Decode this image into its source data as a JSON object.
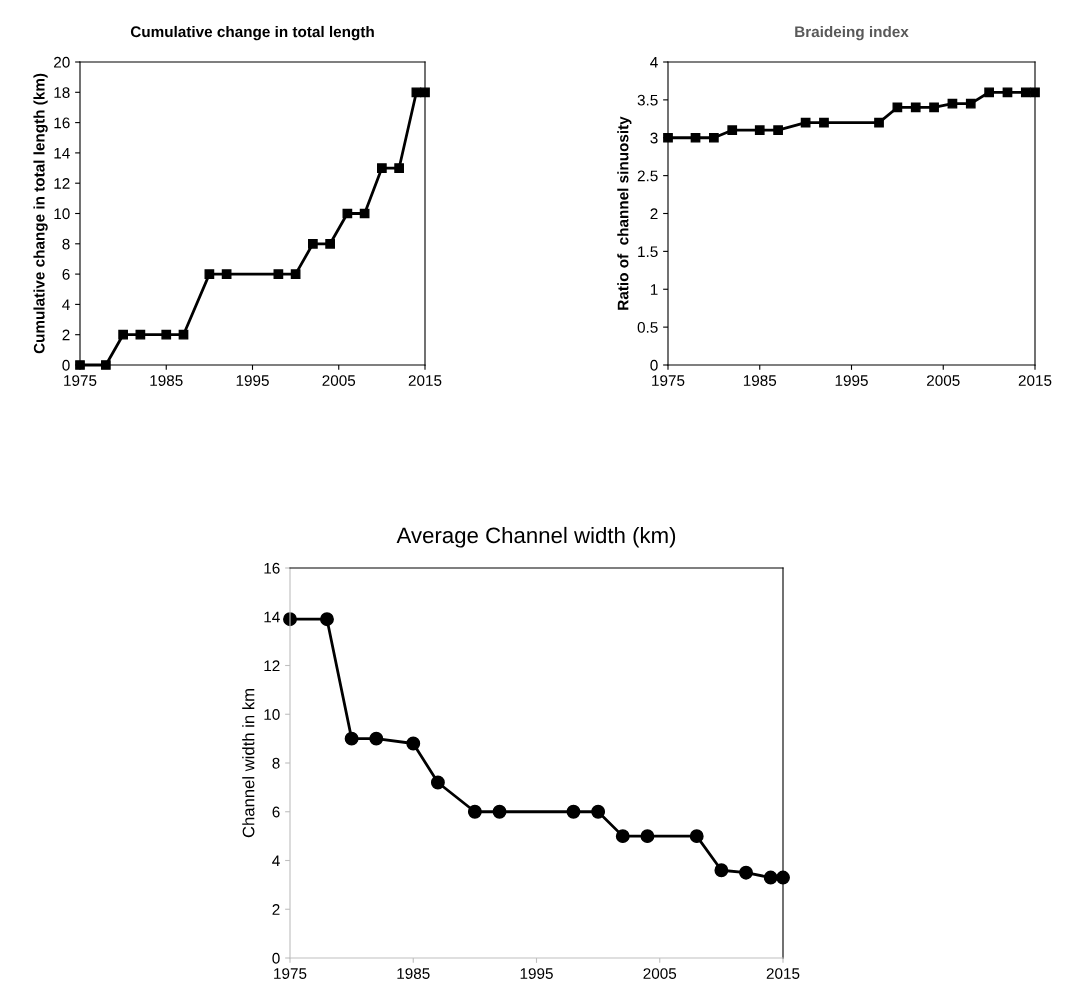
{
  "chart_data": [
    {
      "type": "line",
      "title": "Cumulative change in total length",
      "ylabel": "Cumulative change in total length (km)",
      "marker": "square",
      "grid": false,
      "legend": false,
      "x": [
        1975,
        1978,
        1980,
        1982,
        1985,
        1987,
        1990,
        1992,
        1998,
        2000,
        2002,
        2004,
        2006,
        2008,
        2010,
        2012,
        2014,
        2015
      ],
      "series": [
        {
          "color": "#000000",
          "values": [
            0,
            0,
            2,
            2,
            2,
            2,
            6,
            6,
            6,
            6,
            8,
            8,
            10,
            10,
            13,
            13,
            18,
            18
          ]
        }
      ],
      "xlim": [
        1975,
        2015
      ],
      "xticks": [
        1975,
        1985,
        1995,
        2005,
        2015
      ],
      "ylim": [
        0,
        20
      ],
      "yticks": [
        0,
        2,
        4,
        6,
        8,
        10,
        12,
        14,
        16,
        18,
        20
      ]
    },
    {
      "type": "line",
      "title": "Braideing index",
      "ylabel": "Ratio of  channel sinuosity",
      "marker": "square",
      "grid": false,
      "legend": false,
      "x": [
        1975,
        1978,
        1980,
        1982,
        1985,
        1987,
        1990,
        1992,
        1998,
        2000,
        2002,
        2004,
        2006,
        2008,
        2010,
        2012,
        2014,
        2015
      ],
      "series": [
        {
          "color": "#000000",
          "values": [
            3,
            3,
            3,
            3.1,
            3.1,
            3.1,
            3.2,
            3.2,
            3.2,
            3.4,
            3.4,
            3.4,
            3.45,
            3.45,
            3.6,
            3.6,
            3.6,
            3.6
          ]
        }
      ],
      "xlim": [
        1975,
        2015
      ],
      "xticks": [
        1975,
        1985,
        1995,
        2005,
        2015
      ],
      "ylim": [
        0,
        4
      ],
      "yticks": [
        0,
        0.5,
        1,
        1.5,
        2,
        2.5,
        3,
        3.5,
        4
      ]
    },
    {
      "type": "line",
      "title": "Average Channel width (km)",
      "ylabel": "Channel width in km",
      "marker": "circle",
      "grid": false,
      "legend": false,
      "x": [
        1975,
        1978,
        1980,
        1982,
        1985,
        1987,
        1990,
        1992,
        1998,
        2000,
        2002,
        2004,
        2008,
        2010,
        2012,
        2014,
        2015
      ],
      "series": [
        {
          "color": "#000000",
          "values": [
            13.9,
            13.9,
            9,
            9,
            8.8,
            7.2,
            6,
            6,
            6,
            6,
            5,
            5,
            5,
            3.6,
            3.5,
            3.3,
            3.3
          ]
        }
      ],
      "xlim": [
        1975,
        2015
      ],
      "xticks": [
        1975,
        1985,
        1995,
        2005,
        2015
      ],
      "ylim": [
        0,
        16
      ],
      "yticks": [
        0,
        2,
        4,
        6,
        8,
        10,
        12,
        14,
        16
      ]
    }
  ]
}
